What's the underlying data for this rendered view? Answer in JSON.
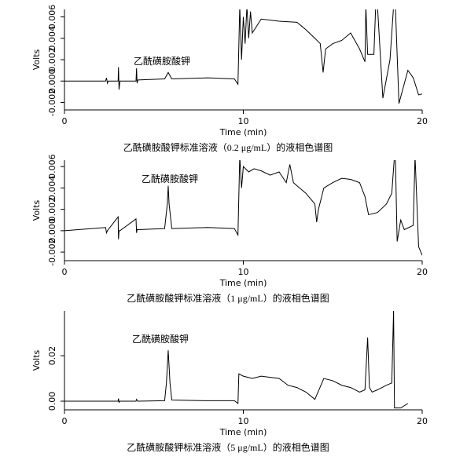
{
  "chart_data": [
    {
      "type": "line",
      "caption": "乙酰磺胺酸钾标准溶液（0.2 μg/mL）的液相色谱图",
      "xlabel": "Time (min)",
      "ylabel": "Volts",
      "annotation": "乙酰磺胺酸钾",
      "color": "#000000",
      "xlim": [
        0,
        20
      ],
      "xticks": [
        0,
        10,
        20
      ],
      "ylim": [
        -0.0027,
        0.0067
      ],
      "yticks": [
        -0.002,
        {
          "value": 0,
          "label": "0.000"
        },
        0.002,
        0.004,
        0.006
      ],
      "x": [
        0,
        2.3,
        2.35,
        2.4,
        2.45,
        3.0,
        3.02,
        3.05,
        3.1,
        4.0,
        4.03,
        4.06,
        4.1,
        5.6,
        5.8,
        6.0,
        8.0,
        9.5,
        9.7,
        9.8,
        9.9,
        10.0,
        10.1,
        10.2,
        10.3,
        10.4,
        10.5,
        11.0,
        12.0,
        13.0,
        13.5,
        14.0,
        14.3,
        14.46,
        14.6,
        15.0,
        15.5,
        16.0,
        16.5,
        16.8,
        16.85,
        16.95,
        17.3,
        17.4,
        17.5,
        17.8,
        18.2,
        18.4,
        18.5,
        18.7,
        19.2,
        19.5,
        19.8,
        20.0
      ],
      "values": [
        0,
        0,
        0.0003,
        -0.0002,
        0,
        0,
        0.0013,
        -0.0008,
        0,
        0,
        0.0012,
        -0.0002,
        0.0001,
        0.0002,
        0.0008,
        0.0002,
        0.0003,
        0.0002,
        -0.0003,
        0.007,
        0.002,
        0.006,
        0.0035,
        0.007,
        0.004,
        0.0065,
        0.0045,
        0.0058,
        0.0056,
        0.0055,
        0.0048,
        0.004,
        0.0035,
        0.0008,
        0.003,
        0.0035,
        0.0038,
        0.0045,
        0.003,
        0.0018,
        0.007,
        0.0025,
        0.0025,
        0.007,
        0.007,
        -0.0016,
        0.002,
        0.007,
        0.007,
        -0.0021,
        0.001,
        0.0003,
        -0.0013,
        -0.0012
      ]
    },
    {
      "type": "line",
      "caption": "乙酰磺胺酸钾标准溶液（1 μg/mL）的液相色谱图",
      "xlabel": "Time (min)",
      "ylabel": "Volts",
      "annotation": "乙酰磺胺酸钾",
      "color": "#000000",
      "xlim": [
        0,
        20
      ],
      "xticks": [
        0,
        10,
        20
      ],
      "ylim": [
        -0.0028,
        0.0066
      ],
      "yticks": [
        -0.002,
        {
          "value": 0,
          "label": "0.000"
        },
        0.002,
        0.004,
        0.006
      ],
      "x": [
        0,
        2.3,
        2.35,
        2.4,
        3.0,
        3.02,
        3.05,
        3.1,
        4.0,
        4.03,
        4.06,
        4.1,
        5.6,
        5.75,
        5.8,
        5.85,
        6.0,
        8.0,
        9.5,
        9.7,
        9.8,
        9.9,
        10.0,
        10.3,
        10.6,
        11.0,
        11.5,
        12.0,
        12.4,
        12.6,
        12.8,
        13.0,
        13.5,
        14.0,
        14.1,
        14.2,
        14.5,
        15.0,
        15.5,
        16.0,
        16.5,
        16.8,
        17.0,
        17.5,
        18.0,
        18.3,
        18.45,
        18.5,
        18.6,
        18.8,
        19.0,
        19.5,
        19.6,
        19.8,
        20.0
      ],
      "values": [
        0,
        0.0003,
        -0.0002,
        0,
        0.0013,
        -0.0008,
        0,
        0,
        0.0011,
        -0.0002,
        0.0001,
        0.0001,
        0.0002,
        0.0025,
        0.0042,
        0.0025,
        0.0002,
        0.0003,
        0.0002,
        -0.0004,
        0.007,
        0.004,
        0.006,
        0.0055,
        0.0058,
        0.0056,
        0.0052,
        0.0055,
        0.0045,
        0.0062,
        0.0045,
        0.0042,
        0.0035,
        0.0025,
        0.0008,
        0.002,
        0.004,
        0.0045,
        0.0049,
        0.0048,
        0.0045,
        0.0032,
        0.0015,
        0.0017,
        0.0025,
        0.0035,
        0.007,
        0.007,
        -0.001,
        0.001,
        0.0001,
        0.0005,
        0.007,
        -0.0015,
        -0.0023
      ]
    },
    {
      "type": "line",
      "caption": "乙酰磺胺酸钾标准溶液（5 μg/mL）的液相色谱图",
      "xlabel": "Time (min)",
      "ylabel": "Volts",
      "annotation": "乙酰磺胺酸钾",
      "color": "#000000",
      "xlim": [
        0,
        20
      ],
      "xticks": [
        0,
        10,
        20
      ],
      "ylim": [
        -0.0038,
        0.0397
      ],
      "yticks": [
        {
          "value": 0,
          "label": "0.00"
        },
        0.02
      ],
      "x": [
        0,
        3.0,
        3.02,
        3.05,
        3.1,
        4.0,
        4.03,
        4.1,
        5.6,
        5.7,
        5.8,
        5.9,
        6.0,
        8.0,
        9.5,
        9.7,
        9.75,
        10.0,
        10.5,
        11.0,
        11.5,
        12.0,
        12.5,
        13.0,
        13.5,
        14.0,
        14.5,
        15.0,
        15.5,
        16.0,
        16.5,
        16.8,
        16.95,
        17.05,
        17.2,
        17.5,
        18.0,
        18.3,
        18.4,
        18.45,
        18.5,
        18.8,
        19.2
      ],
      "values": [
        0,
        0,
        0.0012,
        -0.0005,
        0,
        0,
        0.0008,
        0,
        0.0002,
        0.008,
        0.0224,
        0.008,
        0.0005,
        0.0002,
        0.0002,
        -0.001,
        0.012,
        0.011,
        0.01,
        0.011,
        0.0105,
        0.01,
        0.007,
        0.006,
        0.004,
        0.0008,
        0.01,
        0.009,
        0.007,
        0.006,
        0.004,
        0.005,
        0.028,
        0.006,
        0.004,
        0.005,
        0.007,
        0.008,
        0.04,
        -0.003,
        -0.003,
        -0.003,
        -0.001
      ]
    }
  ]
}
